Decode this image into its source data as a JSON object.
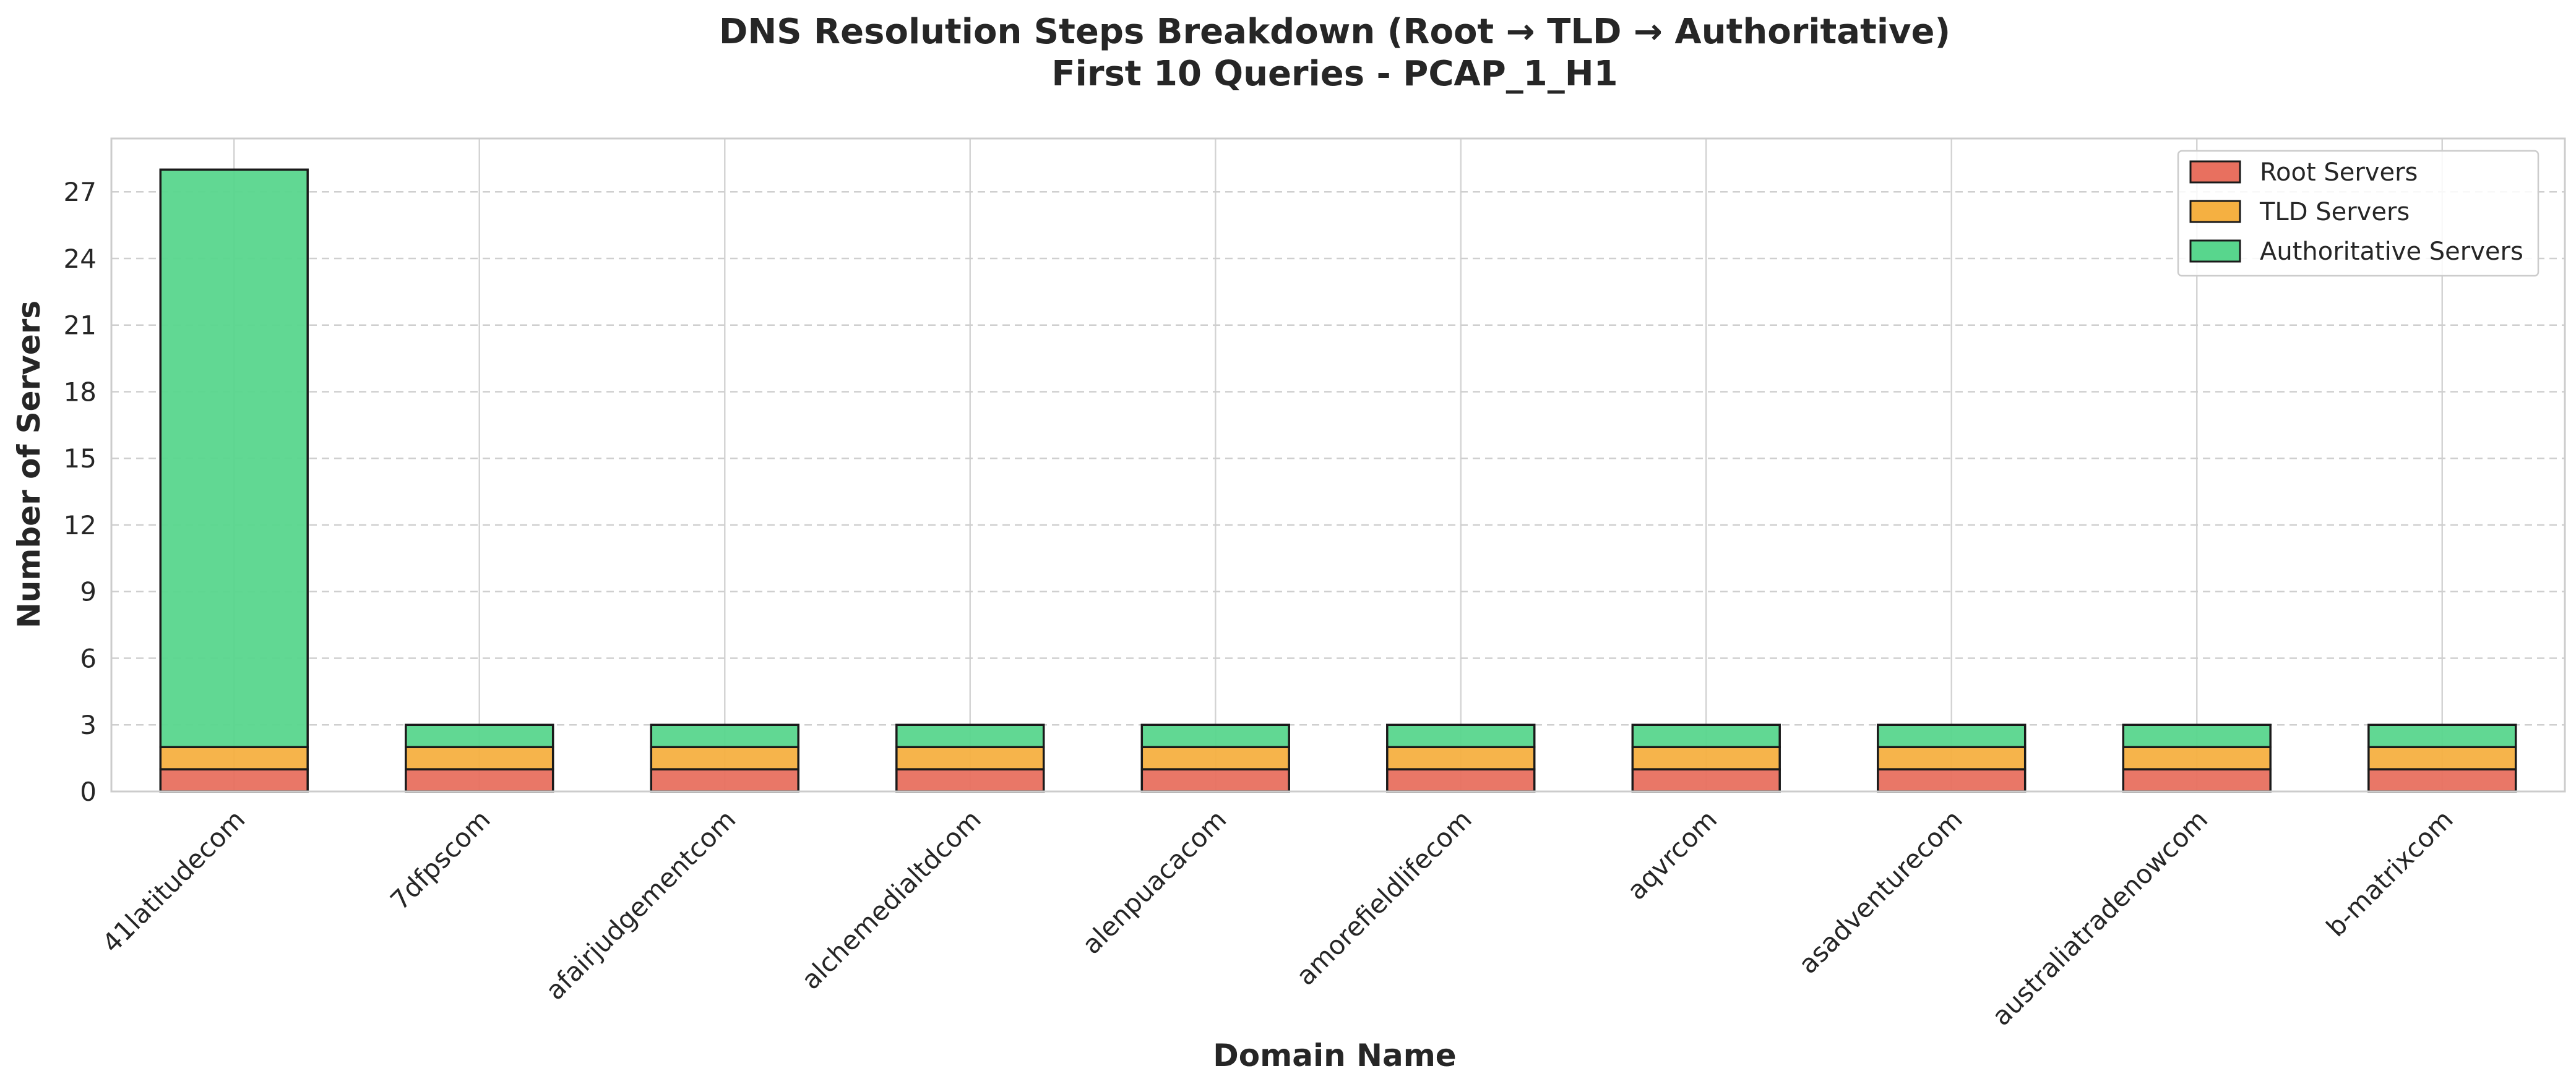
{
  "chart_data": {
    "type": "bar",
    "stacked": true,
    "title": "DNS Resolution Steps Breakdown (Root → TLD → Authoritative)",
    "subtitle": "First 10 Queries - PCAP_1_H1",
    "xlabel": "Domain Name",
    "ylabel": "Number of Servers",
    "categories": [
      "41latitudecom",
      "7dfpscom",
      "afairjudgementcom",
      "alchemedialtdcom",
      "alenpuacacom",
      "amorefieldlifecom",
      "aqvrcom",
      "asadventurecom",
      "australiatradenowcom",
      "b-matrixcom"
    ],
    "series": [
      {
        "name": "Root Servers",
        "color": "#e8705f",
        "values": [
          1,
          1,
          1,
          1,
          1,
          1,
          1,
          1,
          1,
          1
        ]
      },
      {
        "name": "TLD Servers",
        "color": "#f5b041",
        "values": [
          1,
          1,
          1,
          1,
          1,
          1,
          1,
          1,
          1,
          1
        ]
      },
      {
        "name": "Authoritative Servers",
        "color": "#58d68d",
        "values": [
          26,
          1,
          1,
          1,
          1,
          1,
          1,
          1,
          1,
          1
        ]
      }
    ],
    "yticks": [
      0,
      3,
      6,
      9,
      12,
      15,
      18,
      21,
      24,
      27
    ],
    "ylim": [
      0,
      29.4
    ],
    "grid": true,
    "legend_position": "top-right"
  }
}
